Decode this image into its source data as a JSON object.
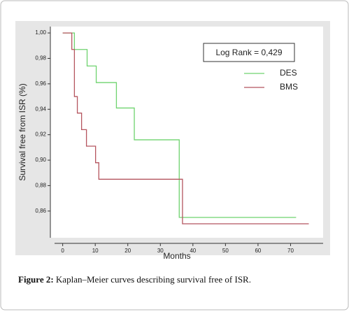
{
  "chart_data": {
    "type": "step",
    "ylabel": "Survival free from ISR (%)",
    "xlabel": "Months",
    "annotation": "Log Rank = 0,429",
    "caption_label": "Figure 2:",
    "caption_text": "Kaplan–Meier curves describing survival free of ISR.",
    "xlim": [
      -2.5,
      80
    ],
    "xticks": [
      0,
      10,
      20,
      30,
      40,
      50,
      60,
      70
    ],
    "ylim": [
      0.839,
      1.005
    ],
    "yticks": [
      {
        "value": 1.0,
        "label": "1,00"
      },
      {
        "value": 0.98,
        "label": "0,98"
      },
      {
        "value": 0.96,
        "label": "0,96"
      },
      {
        "value": 0.94,
        "label": "0,94"
      },
      {
        "value": 0.92,
        "label": "0,92"
      },
      {
        "value": 0.9,
        "label": "0,90"
      },
      {
        "value": 0.88,
        "label": "0,88"
      },
      {
        "value": 0.86,
        "label": "0,86"
      }
    ],
    "series": [
      {
        "name": "DES",
        "color": "#6fd36f",
        "x": [
          0,
          3.6,
          7.5,
          10.3,
          16.5,
          22,
          35.8,
          71.7
        ],
        "values": [
          1.0,
          0.987,
          0.974,
          0.961,
          0.941,
          0.916,
          0.855,
          0.855
        ]
      },
      {
        "name": "BMS",
        "color": "#b5555f",
        "x": [
          0,
          2.8,
          3.6,
          4.5,
          5.8,
          7.3,
          10.1,
          11.1,
          36.8,
          75.6
        ],
        "values": [
          1.0,
          0.987,
          0.95,
          0.937,
          0.924,
          0.911,
          0.898,
          0.885,
          0.85,
          0.85
        ]
      }
    ]
  }
}
